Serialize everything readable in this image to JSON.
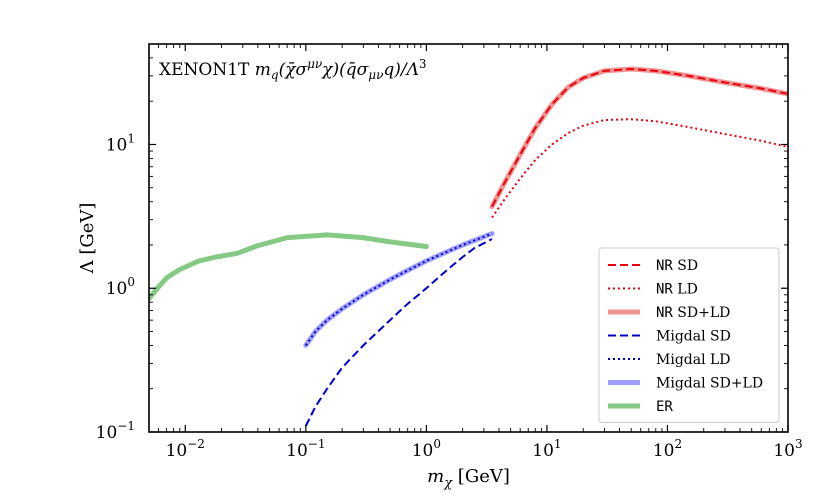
{
  "chart_data": {
    "type": "line",
    "title": "XENON1T m_q(χ̄σ^μν χ)(q̄σ_μν q)/Λ³",
    "title_parts": {
      "prefix": "XENON1T ",
      "formula": "m",
      "formula_sub": "q",
      "formula_rest": "(χ̄σ",
      "sup1": "μν",
      "mid": "χ)(q̄σ",
      "sub2": "μν",
      "end": "q)/Λ",
      "sup3": "3"
    },
    "xlabel": {
      "main": "m",
      "sub": "χ",
      "unit": " [GeV]"
    },
    "ylabel": "Λ [GeV]",
    "xscale": "log",
    "yscale": "log",
    "xlim": [
      0.005,
      1000
    ],
    "ylim": [
      0.1,
      50
    ],
    "xticks": [
      {
        "value": 0.01,
        "base": "10",
        "exp": "−2"
      },
      {
        "value": 0.1,
        "base": "10",
        "exp": "−1"
      },
      {
        "value": 1,
        "base": "10",
        "exp": "0"
      },
      {
        "value": 10,
        "base": "10",
        "exp": "1"
      },
      {
        "value": 100,
        "base": "10",
        "exp": "2"
      },
      {
        "value": 1000,
        "base": "10",
        "exp": "3"
      }
    ],
    "yticks": [
      {
        "value": 0.1,
        "base": "10",
        "exp": "−1"
      },
      {
        "value": 1,
        "base": "10",
        "exp": "0"
      },
      {
        "value": 10,
        "base": "10",
        "exp": "1"
      }
    ],
    "legend_position": "lower-right",
    "series": [
      {
        "id": "nr-sdld",
        "name": "SD+LD",
        "prefix": "NR",
        "color": "#f08080",
        "style": "solid",
        "width": 5,
        "opacity": 0.85,
        "x": [
          3.5,
          4.5,
          6,
          8,
          11,
          15,
          20,
          30,
          50,
          80,
          150,
          300,
          600,
          1000
        ],
        "y": [
          3.7,
          5.5,
          8.5,
          13,
          19,
          25,
          29,
          32.5,
          33.5,
          32.5,
          30,
          27,
          24.5,
          22.5
        ]
      },
      {
        "id": "nr-sd",
        "name": "SD",
        "prefix": "NR",
        "color": "#e8000b",
        "style": "dashed",
        "width": 2,
        "opacity": 1,
        "x": [
          3.5,
          4.5,
          6,
          8,
          11,
          15,
          20,
          30,
          50,
          80,
          150,
          300,
          600,
          1000
        ],
        "y": [
          3.7,
          5.5,
          8.5,
          13,
          19,
          25,
          29,
          32.5,
          33.5,
          32.5,
          30,
          27,
          24.5,
          22.5
        ]
      },
      {
        "id": "nr-ld",
        "name": "LD",
        "prefix": "NR",
        "color": "#e8000b",
        "style": "dotted",
        "width": 2,
        "opacity": 1,
        "x": [
          3.5,
          4.5,
          6,
          8,
          11,
          15,
          20,
          30,
          50,
          80,
          150,
          300,
          600,
          1000
        ],
        "y": [
          3.1,
          4.2,
          5.8,
          7.8,
          10,
          12,
          13.5,
          14.8,
          15,
          14.5,
          13.2,
          11.8,
          10.6,
          9.6
        ]
      },
      {
        "id": "mig-sdld",
        "name": "Migdal SD+LD",
        "prefix": "",
        "color": "#8c8cff",
        "style": "solid",
        "width": 5,
        "opacity": 0.85,
        "x": [
          0.1,
          0.12,
          0.15,
          0.2,
          0.3,
          0.5,
          0.7,
          1,
          1.5,
          2,
          2.5,
          3.5
        ],
        "y": [
          0.4,
          0.5,
          0.6,
          0.72,
          0.9,
          1.15,
          1.33,
          1.55,
          1.8,
          2.0,
          2.15,
          2.4
        ]
      },
      {
        "id": "mig-ld",
        "name": "Migdal LD",
        "prefix": "",
        "color": "#0000cc",
        "style": "dotted",
        "width": 2,
        "opacity": 1,
        "x": [
          0.1,
          0.12,
          0.15,
          0.2,
          0.3,
          0.5,
          0.7,
          1,
          1.5,
          2,
          2.5,
          3.5
        ],
        "y": [
          0.4,
          0.5,
          0.6,
          0.72,
          0.9,
          1.15,
          1.33,
          1.55,
          1.8,
          2.0,
          2.15,
          2.4
        ]
      },
      {
        "id": "mig-sd",
        "name": "Migdal SD",
        "prefix": "",
        "color": "#0000cc",
        "style": "dashed",
        "width": 2,
        "opacity": 1,
        "x": [
          0.1,
          0.12,
          0.15,
          0.2,
          0.3,
          0.5,
          0.7,
          1,
          1.5,
          2,
          2.5,
          3.5
        ],
        "y": [
          0.11,
          0.15,
          0.2,
          0.28,
          0.4,
          0.6,
          0.78,
          1.0,
          1.35,
          1.65,
          1.9,
          2.2
        ]
      },
      {
        "id": "er",
        "name": "ER",
        "prefix": "",
        "mono_name": true,
        "color": "#6fbf6f",
        "style": "solid",
        "width": 5,
        "opacity": 0.85,
        "x": [
          0.005,
          0.006,
          0.007,
          0.009,
          0.013,
          0.018,
          0.027,
          0.04,
          0.07,
          0.15,
          0.3,
          0.5,
          1
        ],
        "y": [
          0.85,
          1.02,
          1.18,
          1.35,
          1.55,
          1.65,
          1.75,
          1.98,
          2.25,
          2.35,
          2.25,
          2.1,
          1.95
        ]
      }
    ],
    "legend_order": [
      "nr-sd",
      "nr-ld",
      "nr-sdld",
      "mig-sd",
      "mig-ld",
      "mig-sdld",
      "er"
    ]
  }
}
